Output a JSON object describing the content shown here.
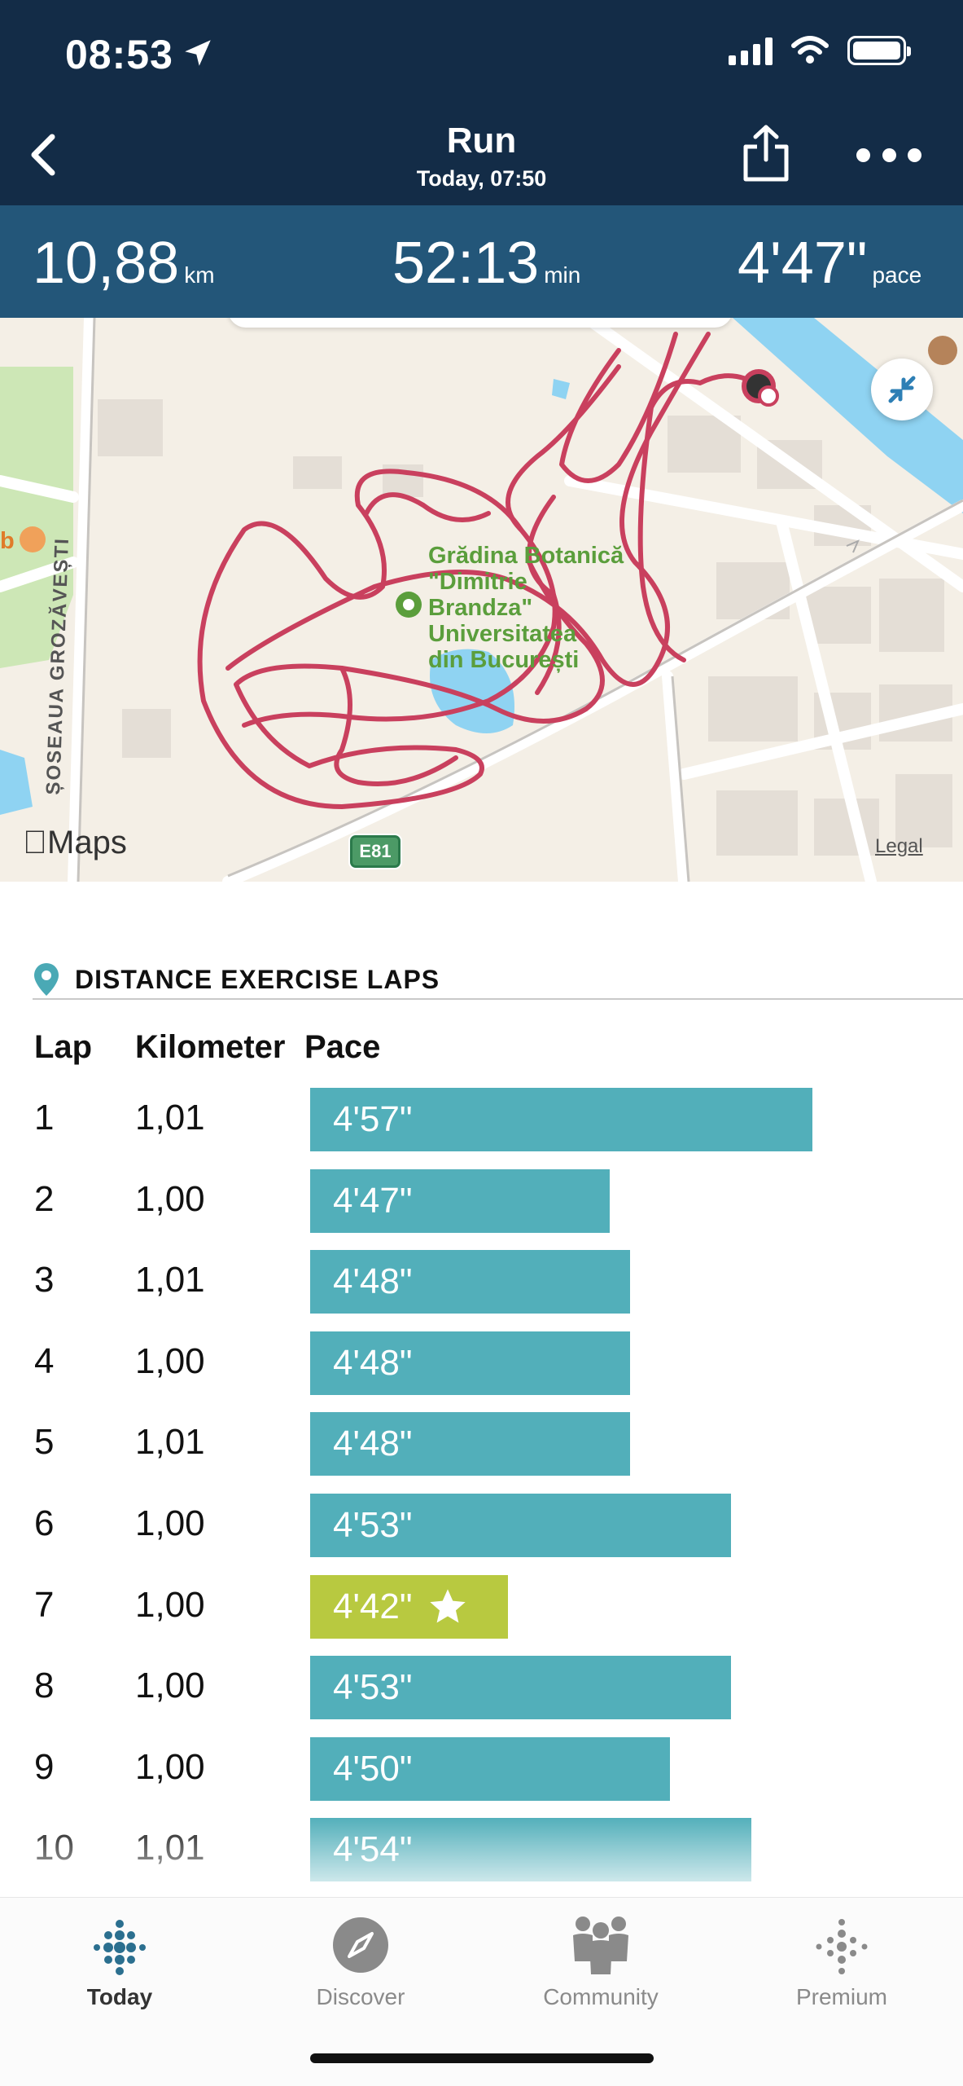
{
  "status_bar": {
    "time": "08:53"
  },
  "header": {
    "title": "Run",
    "subtitle": "Today, 07:50"
  },
  "stats": {
    "distance": {
      "value": "10,88",
      "unit": "km"
    },
    "duration": {
      "value": "52:13",
      "unit": "min"
    },
    "pace": {
      "value": "4'47\"",
      "unit": "pace"
    }
  },
  "map": {
    "poi_label": "Grădina Botanică \"Dimitrie Brandza\" Universitatea din București",
    "poi_lines": [
      "Grădina Botanică",
      "\"Dimitrie",
      "Brandza\"",
      "Universitatea",
      "din București"
    ],
    "street_label": "ȘOSEAUA GROZĂVEȘTI",
    "partial_label": "b",
    "road_shield": "E81",
    "provider": "Maps",
    "legal": "Legal",
    "route_color": "#c9405e"
  },
  "laps": {
    "section_title": "DISTANCE EXERCISE LAPS",
    "columns": [
      "Lap",
      "Kilometer",
      "Pace"
    ],
    "bar_color": "#52afba",
    "best_color": "#b8c940",
    "rows": [
      {
        "lap": "1",
        "km": "1,01",
        "pace": "4'57\"",
        "best": false
      },
      {
        "lap": "2",
        "km": "1,00",
        "pace": "4'47\"",
        "best": false
      },
      {
        "lap": "3",
        "km": "1,01",
        "pace": "4'48\"",
        "best": false
      },
      {
        "lap": "4",
        "km": "1,00",
        "pace": "4'48\"",
        "best": false
      },
      {
        "lap": "5",
        "km": "1,01",
        "pace": "4'48\"",
        "best": false
      },
      {
        "lap": "6",
        "km": "1,00",
        "pace": "4'53\"",
        "best": false
      },
      {
        "lap": "7",
        "km": "1,00",
        "pace": "4'42\"",
        "best": true
      },
      {
        "lap": "8",
        "km": "1,00",
        "pace": "4'53\"",
        "best": false
      },
      {
        "lap": "9",
        "km": "1,00",
        "pace": "4'50\"",
        "best": false
      },
      {
        "lap": "10",
        "km": "1,01",
        "pace": "4'54\"",
        "best": false
      }
    ]
  },
  "tabbar": {
    "items": [
      {
        "label": "Today",
        "icon": "fitbit-dots-icon",
        "active": true
      },
      {
        "label": "Discover",
        "icon": "compass-icon",
        "active": false
      },
      {
        "label": "Community",
        "icon": "people-icon",
        "active": false
      },
      {
        "label": "Premium",
        "icon": "premium-dots-icon",
        "active": false
      }
    ]
  }
}
